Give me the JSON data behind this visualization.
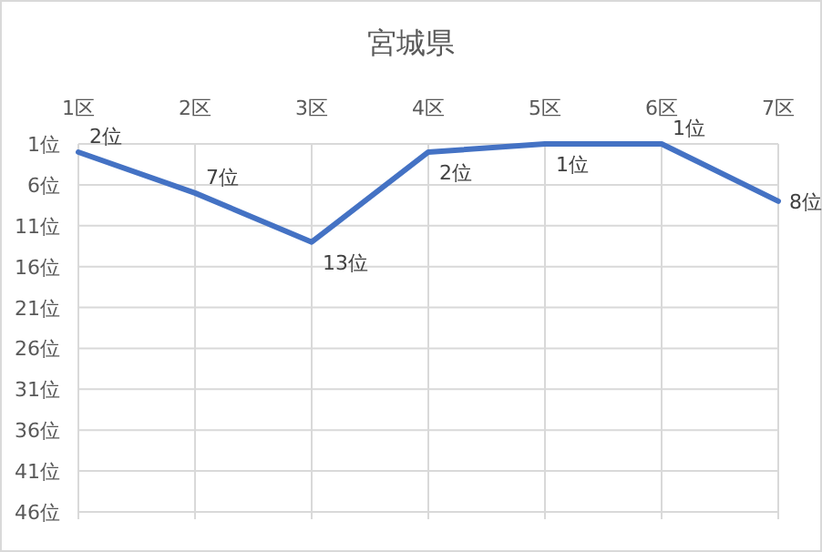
{
  "chart_data": {
    "type": "line",
    "title": "宮城県",
    "categories": [
      "1区",
      "2区",
      "3区",
      "4区",
      "5区",
      "6区",
      "7区"
    ],
    "values": [
      2,
      7,
      13,
      2,
      1,
      1,
      8
    ],
    "value_labels": [
      "2位",
      "7位",
      "13位",
      "2位",
      "1位",
      "1位",
      "8位"
    ],
    "color": "#4472c4",
    "ylim": [
      46,
      1
    ],
    "yticks": [
      {
        "value": 1,
        "label": "1位"
      },
      {
        "value": 6,
        "label": "6位"
      },
      {
        "value": 11,
        "label": "11位"
      },
      {
        "value": 16,
        "label": "16位"
      },
      {
        "value": 21,
        "label": "21位"
      },
      {
        "value": 26,
        "label": "26位"
      },
      {
        "value": 31,
        "label": "31位"
      },
      {
        "value": 36,
        "label": "36位"
      },
      {
        "value": 41,
        "label": "41位"
      },
      {
        "value": 46,
        "label": "46位"
      }
    ],
    "grid": true
  }
}
